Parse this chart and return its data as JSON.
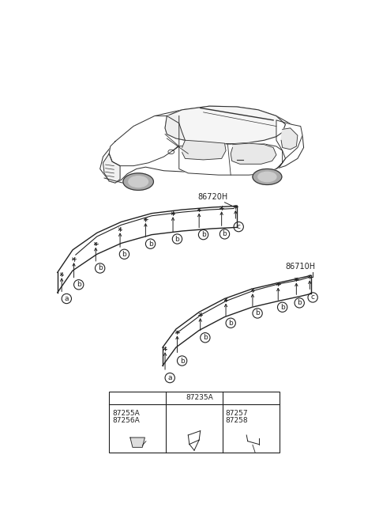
{
  "bg_color": "#ffffff",
  "lc": "#222222",
  "car_lc": "#333333",
  "fig_w": 4.8,
  "fig_h": 6.56,
  "dpi": 100,
  "label_86720H": "86720H",
  "label_86710H": "86710H",
  "legend": {
    "a_parts": [
      "87255A",
      "87256A"
    ],
    "b_part": "87235A",
    "c_parts": [
      "87257",
      "87258"
    ]
  }
}
